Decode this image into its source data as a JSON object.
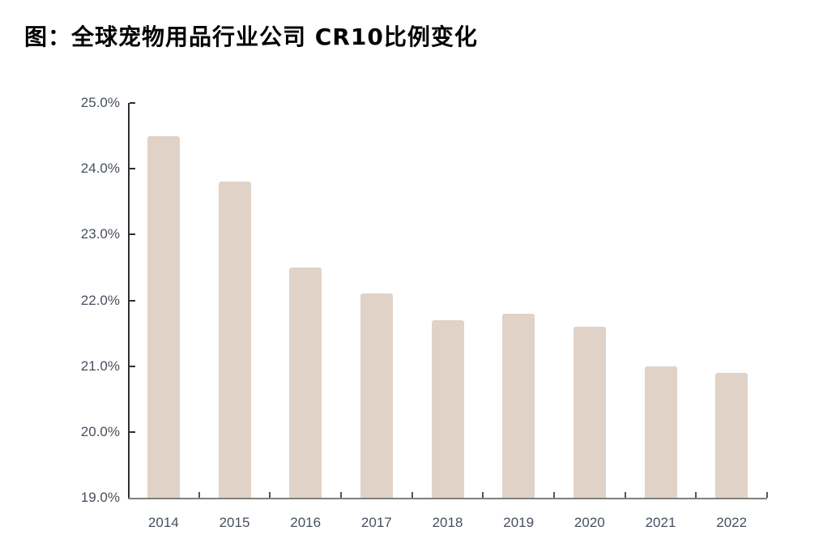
{
  "title": "图：全球宠物用品行业公司 CR10比例变化",
  "chart_data": {
    "type": "bar",
    "title": "图：全球宠物用品行业公司 CR10比例变化",
    "categories": [
      "2014",
      "2015",
      "2016",
      "2017",
      "2018",
      "2019",
      "2020",
      "2021",
      "2022"
    ],
    "values": [
      24.5,
      23.8,
      22.5,
      22.1,
      21.7,
      21.8,
      21.6,
      21.0,
      20.9
    ],
    "unit": "%",
    "xlabel": "",
    "ylabel": "",
    "ylim": [
      19.0,
      25.0
    ],
    "ytick_step": 1.0,
    "ytick_labels": [
      "19.0%",
      "20.0%",
      "21.0%",
      "22.0%",
      "23.0%",
      "24.0%",
      "25.0%"
    ],
    "grid": false,
    "legend_position": "none",
    "bar_color": "#e0d2c6",
    "yaxis_color": "#2e2e2e",
    "xaxis_color": "#7f7f7f",
    "tick_label_color": "#47505e",
    "title_color": "#000000"
  }
}
